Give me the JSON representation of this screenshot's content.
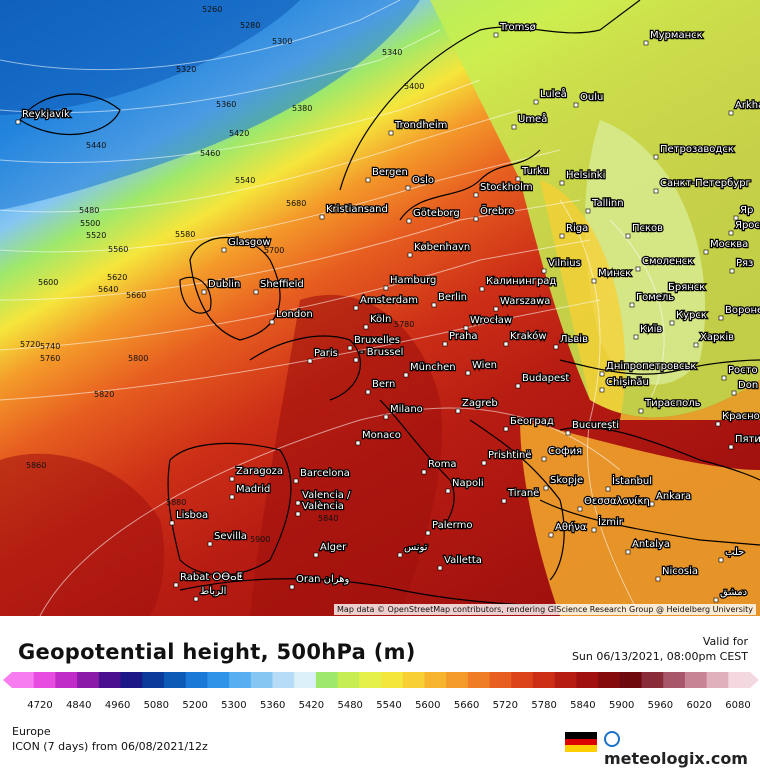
{
  "title": "Geopotential height, 500hPa (m)",
  "valid_label": "Valid for",
  "valid_time": "Sun 06/13/2021, 08:00pm CEST",
  "region": "Europe",
  "model_run": "ICON (7 days)  from  06/08/2021/12z",
  "brand": "meteologix.com",
  "attribution": "Map data © OpenStreetMap contributors, rendering GIScience Research Group @ Heidelberg University",
  "scale": {
    "ticks": [
      "4720",
      "4840",
      "4960",
      "5080",
      "5200",
      "5300",
      "5360",
      "5420",
      "5480",
      "5540",
      "5600",
      "5660",
      "5720",
      "5780",
      "5840",
      "5900",
      "5960",
      "6020",
      "6080"
    ],
    "colors": [
      "#f77cf0",
      "#e64de0",
      "#c02cc8",
      "#8b1aa8",
      "#4a0f8e",
      "#1c1888",
      "#0a3b9a",
      "#0c5ab4",
      "#1a78d6",
      "#2f93e8",
      "#57aef0",
      "#86c6f3",
      "#b6dcf7",
      "#dcf0fa",
      "#9ee86b",
      "#c6ee52",
      "#e6f04a",
      "#f5e63c",
      "#f8cf34",
      "#f7b42e",
      "#f49a2a",
      "#ef7d25",
      "#e75e20",
      "#dc431b",
      "#cc2e16",
      "#b71c12",
      "#a0100e",
      "#850a0b",
      "#6d0a0e",
      "#8a2b3a",
      "#a8566a",
      "#c68495",
      "#e0b0bd",
      "#f4d8e0"
    ]
  },
  "cities": [
    {
      "name": "Reykjavík"
    },
    {
      "name": "Tromsø"
    },
    {
      "name": "Мурманск"
    },
    {
      "name": "Luleå"
    },
    {
      "name": "Oulu"
    },
    {
      "name": "Arkha"
    },
    {
      "name": "Trondheim"
    },
    {
      "name": "Umeå"
    },
    {
      "name": "Петрозаводск"
    },
    {
      "name": "Bergen"
    },
    {
      "name": "Oslo"
    },
    {
      "name": "Stockholm"
    },
    {
      "name": "Turku"
    },
    {
      "name": "Helsinki"
    },
    {
      "name": "Санкт-Петербург"
    },
    {
      "name": "Kristiansand"
    },
    {
      "name": "Göteborg"
    },
    {
      "name": "Örebro"
    },
    {
      "name": "Tallinn"
    },
    {
      "name": "Псков"
    },
    {
      "name": "Яр"
    },
    {
      "name": "Яросл"
    },
    {
      "name": "Glasgow"
    },
    {
      "name": "København"
    },
    {
      "name": "Riga"
    },
    {
      "name": "Смоленск"
    },
    {
      "name": "Москва"
    },
    {
      "name": "Ряз"
    },
    {
      "name": "Dublin"
    },
    {
      "name": "Sheffield"
    },
    {
      "name": "Hamburg"
    },
    {
      "name": "Калининград"
    },
    {
      "name": "Vilnius"
    },
    {
      "name": "Минск"
    },
    {
      "name": "Брянск"
    },
    {
      "name": "Amsterdam"
    },
    {
      "name": "Berlin"
    },
    {
      "name": "Warszawa"
    },
    {
      "name": "Гомель"
    },
    {
      "name": "Курск"
    },
    {
      "name": "Вороне"
    },
    {
      "name": "London"
    },
    {
      "name": "Köln"
    },
    {
      "name": "Wrocław"
    },
    {
      "name": "Київ"
    },
    {
      "name": "Харків"
    },
    {
      "name": "Bruxelles"
    },
    {
      "name": "- Brussel"
    },
    {
      "name": "Praha"
    },
    {
      "name": "Kraków"
    },
    {
      "name": "Львів"
    },
    {
      "name": "Paris"
    },
    {
      "name": "Дніпропетровськ"
    },
    {
      "name": "Росто"
    },
    {
      "name": "Don"
    },
    {
      "name": "München"
    },
    {
      "name": "Wien"
    },
    {
      "name": "Chișinău"
    },
    {
      "name": "Bern"
    },
    {
      "name": "Budapest"
    },
    {
      "name": "Тирасполь"
    },
    {
      "name": "Milano"
    },
    {
      "name": "Zagreb"
    },
    {
      "name": "Београд"
    },
    {
      "name": "Красно"
    },
    {
      "name": "Monaco"
    },
    {
      "name": "București"
    },
    {
      "name": "Пяти"
    },
    {
      "name": "Prishtinë"
    },
    {
      "name": "София"
    },
    {
      "name": "Zaragoza"
    },
    {
      "name": "Barcelona"
    },
    {
      "name": "Roma"
    },
    {
      "name": "Madrid"
    },
    {
      "name": "Valencia /"
    },
    {
      "name": "València"
    },
    {
      "name": "Napoli"
    },
    {
      "name": "Tiranë"
    },
    {
      "name": "Skopje"
    },
    {
      "name": "İstanbul"
    },
    {
      "name": "Θεσσαλονίκη"
    },
    {
      "name": "Ankara"
    },
    {
      "name": "Lisboa"
    },
    {
      "name": "İzmir"
    },
    {
      "name": "Palermo"
    },
    {
      "name": "Αθήνα"
    },
    {
      "name": "Sevilla"
    },
    {
      "name": "Alger"
    },
    {
      "name": "تونس"
    },
    {
      "name": "Antalya"
    },
    {
      "name": "حلب"
    },
    {
      "name": "Valletta"
    },
    {
      "name": "Rabat ⵔⴱⴰⵟ"
    },
    {
      "name": "الرباط"
    },
    {
      "name": "Oran وهران"
    },
    {
      "name": "Nicosia"
    },
    {
      "name": "دمشق"
    }
  ],
  "contour_labels": [
    "5260",
    "5280",
    "5300",
    "5320",
    "5340",
    "5360",
    "5380",
    "5400",
    "5420",
    "5440",
    "5460",
    "5480",
    "5500",
    "5520",
    "5540",
    "5560",
    "5580",
    "5600",
    "5620",
    "5640",
    "5660",
    "5680",
    "5700",
    "5720",
    "5740",
    "5760",
    "5780",
    "5800",
    "5820",
    "5840",
    "5860",
    "5880",
    "5900"
  ]
}
